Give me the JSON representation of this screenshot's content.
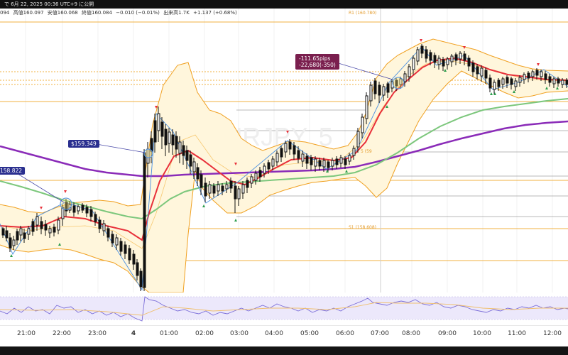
{
  "header": {
    "title_fragment": "で 6月 22, 2025 00:36 UTC+9 に公開",
    "ohlc": {
      "open_fragment": "094",
      "high": "高値160.097",
      "low": "安値160.068",
      "close": "終値160.084",
      "change": "−0.010 (−0.01%)",
      "volume": "出来高1.7K",
      "extra": "+1.137 (+0.68%)"
    }
  },
  "watermark": "EURJPY, 5",
  "levels": {
    "r1": "R1 (160.780)",
    "s1": "S1 (158.608)",
    "extra_fragment": "5 (59"
  },
  "annotations": {
    "price_tag_1": "$159.349",
    "price_tag_2": "158.822",
    "pips_line1": "-111.65pips",
    "pips_line2": "-22,680(-350)"
  },
  "time_axis": [
    "21:00",
    "22:00",
    "23:00",
    "4",
    "01:00",
    "02:00",
    "03:00",
    "04:00",
    "05:00",
    "06:00",
    "07:00",
    "08:00",
    "09:00",
    "10:00",
    "11:00",
    "12:00"
  ],
  "colors": {
    "bollinger": "#f0a020",
    "bollinger_fill": "#fff6dc",
    "ema_fast": "#e8303a",
    "ema_mid": "#7cc77c",
    "ema_slow": "#8a2bb8",
    "zigzag": "#4a90e2",
    "candle": "#111111",
    "rsi": "#7a6cd8"
  }
}
